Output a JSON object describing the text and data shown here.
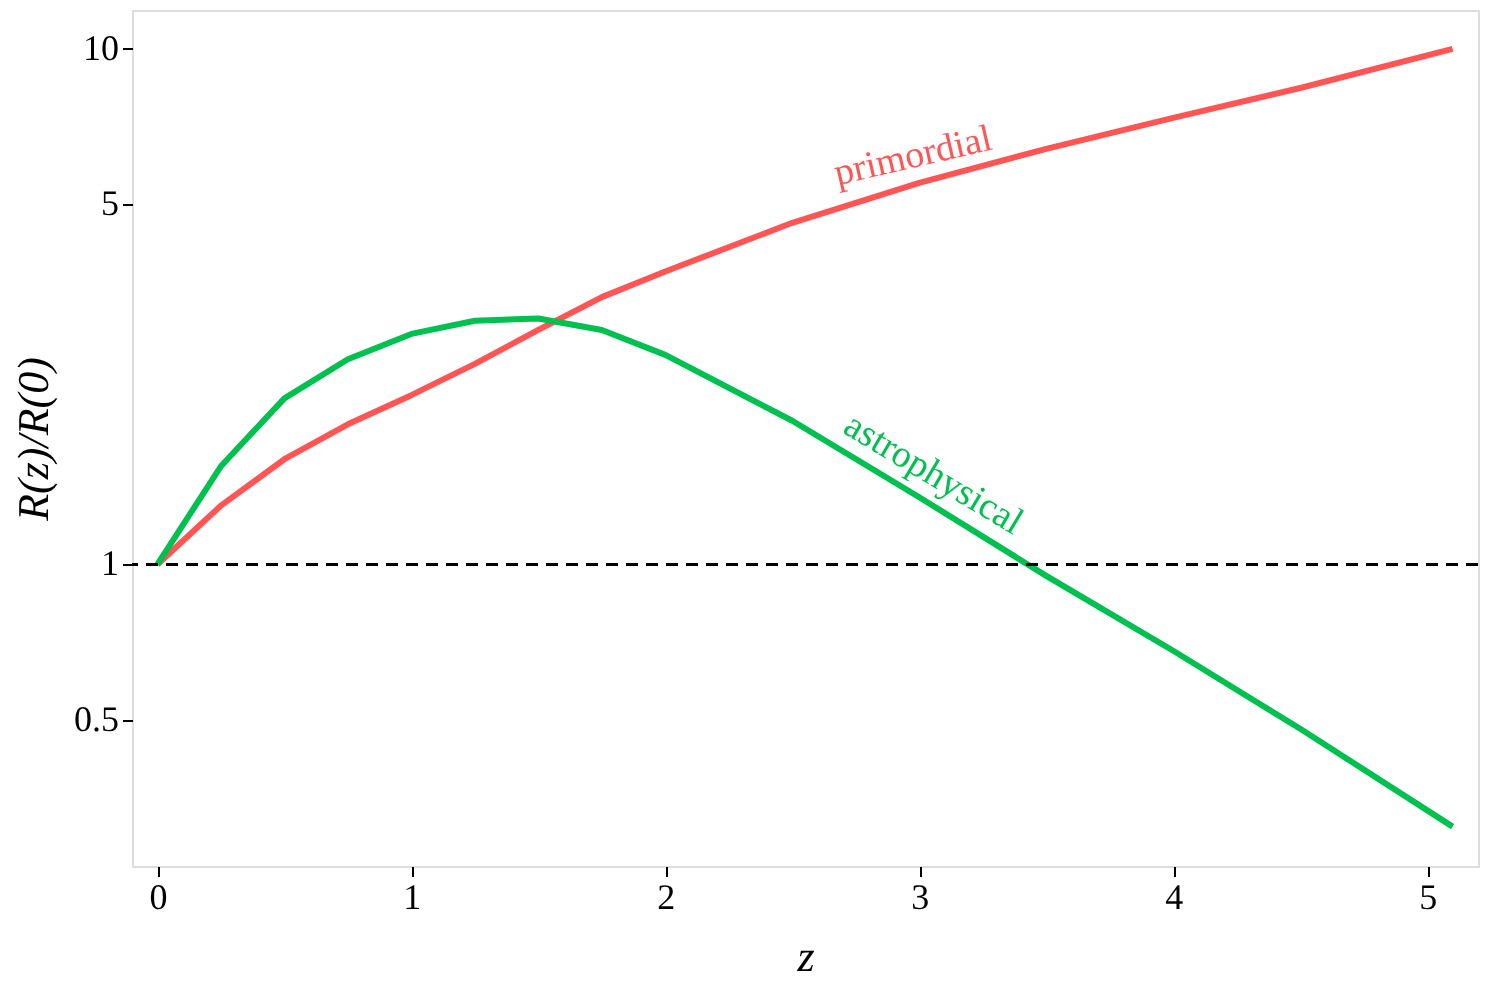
{
  "chart_data": {
    "type": "line",
    "xlabel": "z",
    "ylabel": "R(z)/R(0)",
    "log": "y",
    "xlim": [
      -0.1,
      5.2
    ],
    "xticks": [
      0,
      1,
      2,
      3,
      4,
      5
    ],
    "ylim": [
      0.26,
      11.9
    ],
    "yticks": [
      0.5,
      1,
      5,
      10
    ],
    "grid": false,
    "line_style": "solid",
    "marker": "none",
    "x": [
      0,
      0.25,
      0.5,
      0.75,
      1,
      1.25,
      1.5,
      1.75,
      2,
      2.5,
      3,
      3.5,
      4,
      4.5,
      5.1
    ],
    "series": [
      {
        "name": "primordial",
        "color": "#ff5555",
        "values": [
          1,
          1.3,
          1.6,
          1.87,
          2.13,
          2.45,
          2.85,
          3.3,
          3.7,
          4.6,
          5.5,
          6.4,
          7.35,
          8.4,
          10
        ]
      },
      {
        "name": "astrophysical",
        "color": "#00c050",
        "values": [
          1,
          1.55,
          2.1,
          2.5,
          2.8,
          2.97,
          3.0,
          2.85,
          2.55,
          1.9,
          1.35,
          0.95,
          0.68,
          0.48,
          0.31
        ]
      }
    ],
    "ref_lines": [
      {
        "axis": "y",
        "value": 1,
        "color": "#000000",
        "line_style": "dashed"
      }
    ]
  }
}
